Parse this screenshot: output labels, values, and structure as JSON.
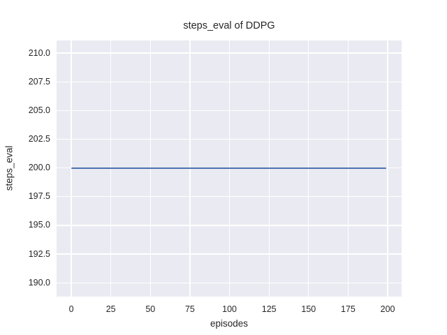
{
  "chart_data": {
    "type": "line",
    "title": "steps_eval of DDPG",
    "xlabel": "episodes",
    "ylabel": "steps_eval",
    "x_ticks": [
      {
        "value": 0,
        "label": "0"
      },
      {
        "value": 25,
        "label": "25"
      },
      {
        "value": 50,
        "label": "50"
      },
      {
        "value": 75,
        "label": "75"
      },
      {
        "value": 100,
        "label": "100"
      },
      {
        "value": 125,
        "label": "125"
      },
      {
        "value": 150,
        "label": "150"
      },
      {
        "value": 175,
        "label": "175"
      },
      {
        "value": 200,
        "label": "200"
      }
    ],
    "y_ticks": [
      {
        "value": 190.0,
        "label": "190.0"
      },
      {
        "value": 192.5,
        "label": "192.5"
      },
      {
        "value": 195.0,
        "label": "195.0"
      },
      {
        "value": 197.5,
        "label": "197.5"
      },
      {
        "value": 200.0,
        "label": "200.0"
      },
      {
        "value": 202.5,
        "label": "202.5"
      },
      {
        "value": 205.0,
        "label": "205.0"
      },
      {
        "value": 207.5,
        "label": "207.5"
      },
      {
        "value": 210.0,
        "label": "210.0"
      }
    ],
    "xlim": [
      -9.3,
      208.8
    ],
    "ylim": [
      188.8,
      211.1
    ],
    "grid": true,
    "legend": "none",
    "colors": {
      "figure_background": "#ffffff",
      "axes_background": "#eaeaf2",
      "grid": "#ffffff",
      "text": "#262626",
      "line": "#4c72b0"
    },
    "series": [
      {
        "name": "steps_eval of DDPG",
        "color": "#4c72b0",
        "line_width": 2,
        "x": [
          0,
          199
        ],
        "y": [
          200,
          200
        ]
      }
    ]
  }
}
